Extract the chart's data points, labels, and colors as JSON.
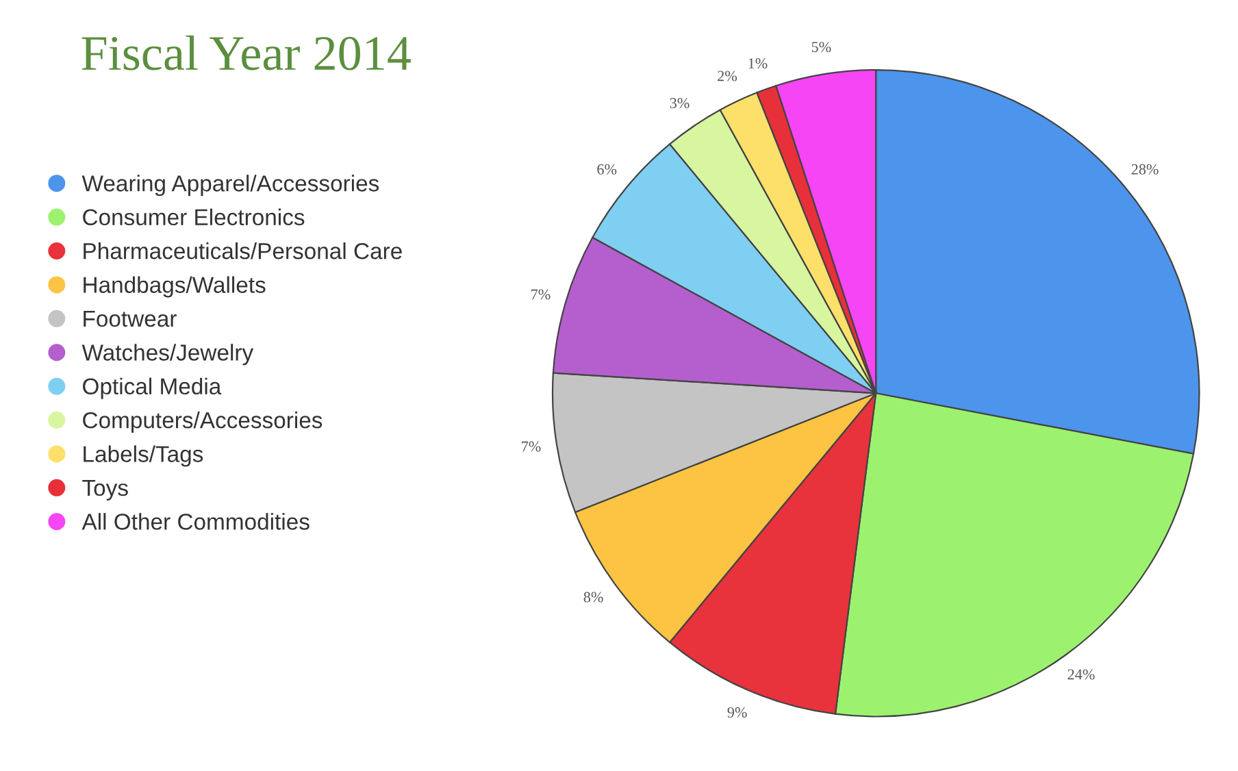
{
  "chart_data": {
    "type": "pie",
    "title": "Fiscal Year 2014",
    "categories": [
      "Wearing Apparel/Accessories",
      "Consumer Electronics",
      "Pharmaceuticals/Personal Care",
      "Handbags/Wallets",
      "Footwear",
      "Watches/Jewelry",
      "Optical Media",
      "Computers/Accessories",
      "Labels/Tags",
      "Toys",
      "All Other Commodities"
    ],
    "values": [
      28,
      24,
      9,
      8,
      7,
      7,
      6,
      3,
      2,
      1,
      5
    ],
    "value_labels": [
      "28%",
      "24%",
      "9%",
      "8%",
      "7%",
      "7%",
      "6%",
      "3%",
      "2%",
      "1%",
      "5%"
    ],
    "colors": [
      "#4d94ec",
      "#9cf26e",
      "#e8323c",
      "#fdc443",
      "#c4c4c4",
      "#b55fcf",
      "#7fcff3",
      "#d8f5a0",
      "#fde06a",
      "#e8303a",
      "#f545f5"
    ],
    "legend": "left"
  }
}
